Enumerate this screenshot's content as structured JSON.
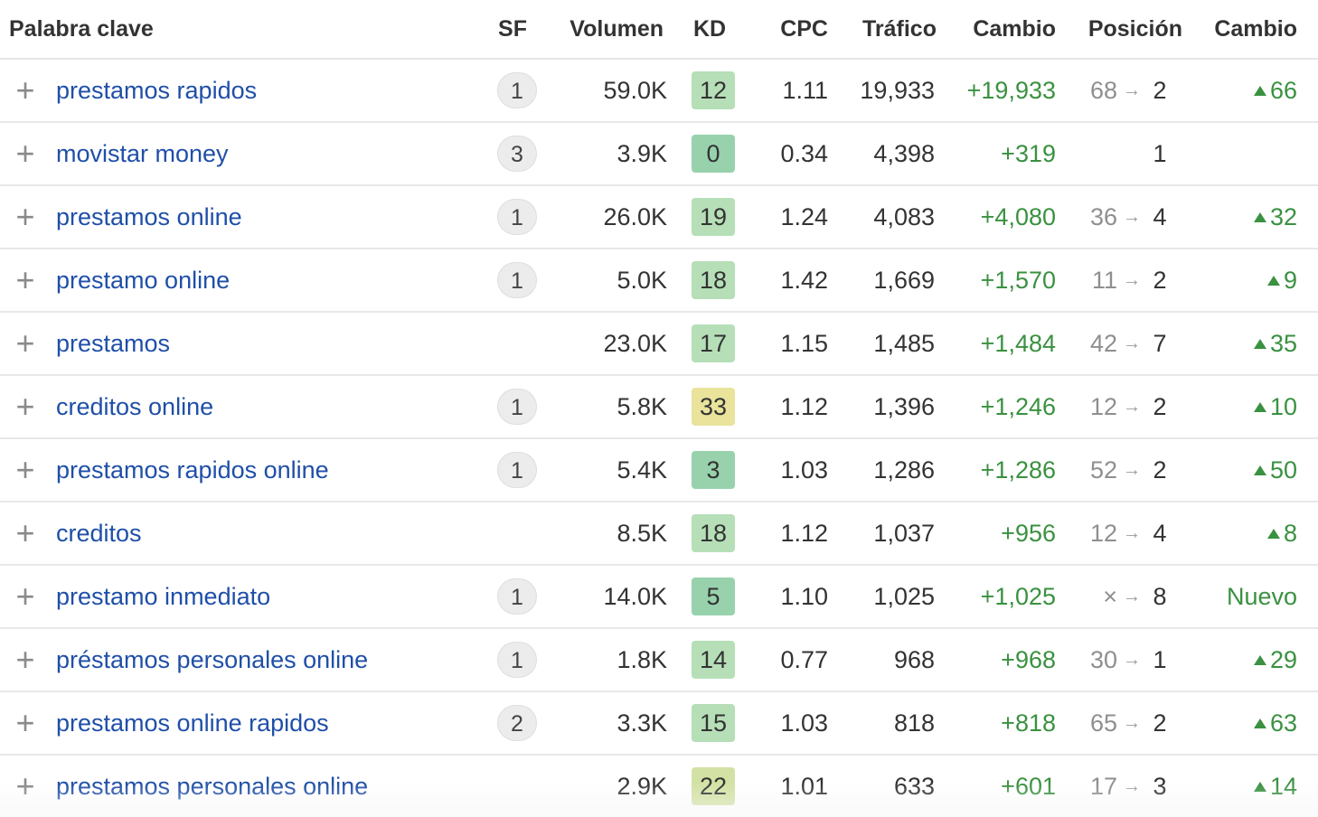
{
  "columns": {
    "keyword": "Palabra clave",
    "sf": "SF",
    "volume": "Volumen",
    "kd": "KD",
    "cpc": "CPC",
    "traffic": "Tráfico",
    "change": "Cambio",
    "position": "Posición",
    "position_change": "Cambio"
  },
  "kd_colors": {
    "dark_green": "#98d2ad",
    "light_green": "#b6dfb8",
    "yellow": "#e9e39c",
    "olive": "#d3e2a4"
  },
  "rows": [
    {
      "keyword": "prestamos rapidos",
      "sf": "1",
      "volume": "59.0K",
      "kd": "12",
      "kd_color": "#b6dfb8",
      "cpc": "1.11",
      "traffic": "19,933",
      "change": "+19,933",
      "pos_old": "68",
      "pos_arrow": "→",
      "pos_new": "2",
      "delta": "66",
      "delta_up": true
    },
    {
      "keyword": "movistar money",
      "sf": "3",
      "volume": "3.9K",
      "kd": "0",
      "kd_color": "#98d2ad",
      "cpc": "0.34",
      "traffic": "4,398",
      "change": "+319",
      "pos_old": "",
      "pos_arrow": "",
      "pos_new": "1",
      "delta": "",
      "delta_up": false
    },
    {
      "keyword": "prestamos online",
      "sf": "1",
      "volume": "26.0K",
      "kd": "19",
      "kd_color": "#b6dfb8",
      "cpc": "1.24",
      "traffic": "4,083",
      "change": "+4,080",
      "pos_old": "36",
      "pos_arrow": "→",
      "pos_new": "4",
      "delta": "32",
      "delta_up": true
    },
    {
      "keyword": "prestamo online",
      "sf": "1",
      "volume": "5.0K",
      "kd": "18",
      "kd_color": "#b6dfb8",
      "cpc": "1.42",
      "traffic": "1,669",
      "change": "+1,570",
      "pos_old": "11",
      "pos_arrow": "→",
      "pos_new": "2",
      "delta": "9",
      "delta_up": true
    },
    {
      "keyword": "prestamos",
      "sf": "",
      "volume": "23.0K",
      "kd": "17",
      "kd_color": "#b6dfb8",
      "cpc": "1.15",
      "traffic": "1,485",
      "change": "+1,484",
      "pos_old": "42",
      "pos_arrow": "→",
      "pos_new": "7",
      "delta": "35",
      "delta_up": true
    },
    {
      "keyword": "creditos online",
      "sf": "1",
      "volume": "5.8K",
      "kd": "33",
      "kd_color": "#e9e39c",
      "cpc": "1.12",
      "traffic": "1,396",
      "change": "+1,246",
      "pos_old": "12",
      "pos_arrow": "→",
      "pos_new": "2",
      "delta": "10",
      "delta_up": true
    },
    {
      "keyword": "prestamos rapidos online",
      "sf": "1",
      "volume": "5.4K",
      "kd": "3",
      "kd_color": "#98d2ad",
      "cpc": "1.03",
      "traffic": "1,286",
      "change": "+1,286",
      "pos_old": "52",
      "pos_arrow": "→",
      "pos_new": "2",
      "delta": "50",
      "delta_up": true
    },
    {
      "keyword": "creditos",
      "sf": "",
      "volume": "8.5K",
      "kd": "18",
      "kd_color": "#b6dfb8",
      "cpc": "1.12",
      "traffic": "1,037",
      "change": "+956",
      "pos_old": "12",
      "pos_arrow": "→",
      "pos_new": "4",
      "delta": "8",
      "delta_up": true
    },
    {
      "keyword": "prestamo inmediato",
      "sf": "1",
      "volume": "14.0K",
      "kd": "5",
      "kd_color": "#98d2ad",
      "cpc": "1.10",
      "traffic": "1,025",
      "change": "+1,025",
      "pos_old": "×",
      "pos_arrow": "→",
      "pos_new": "8",
      "delta": "Nuevo",
      "delta_up": false
    },
    {
      "keyword": "préstamos personales online",
      "sf": "1",
      "volume": "1.8K",
      "kd": "14",
      "kd_color": "#b6dfb8",
      "cpc": "0.77",
      "traffic": "968",
      "change": "+968",
      "pos_old": "30",
      "pos_arrow": "→",
      "pos_new": "1",
      "delta": "29",
      "delta_up": true
    },
    {
      "keyword": "prestamos online rapidos",
      "sf": "2",
      "volume": "3.3K",
      "kd": "15",
      "kd_color": "#b6dfb8",
      "cpc": "1.03",
      "traffic": "818",
      "change": "+818",
      "pos_old": "65",
      "pos_arrow": "→",
      "pos_new": "2",
      "delta": "63",
      "delta_up": true
    },
    {
      "keyword": "prestamos personales online",
      "sf": "",
      "volume": "2.9K",
      "kd": "22",
      "kd_color": "#d3e2a4",
      "cpc": "1.01",
      "traffic": "633",
      "change": "+601",
      "pos_old": "17",
      "pos_arrow": "→",
      "pos_new": "3",
      "delta": "14",
      "delta_up": true
    }
  ],
  "row_action_icon": "plus-icon"
}
